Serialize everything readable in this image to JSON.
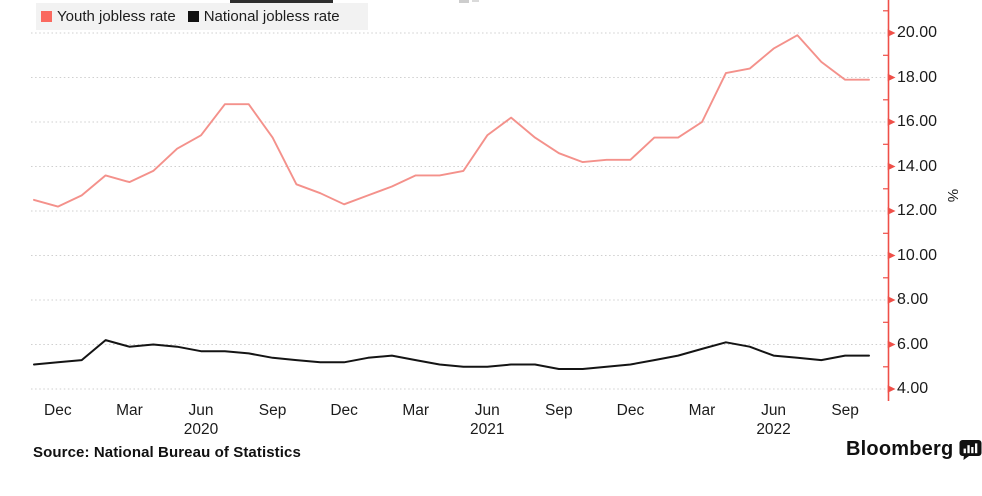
{
  "legend": {
    "items": [
      {
        "label": "Youth jobless rate",
        "color": "#fa695f"
      },
      {
        "label": "National jobless rate",
        "color": "#111111"
      }
    ]
  },
  "source": {
    "text": "Source: National Bureau of Statistics"
  },
  "branding": {
    "logo_text": "Bloomberg"
  },
  "chart_data": {
    "type": "line",
    "frequency": "monthly",
    "grid": "horizontal-dotted",
    "legend_position": "top-left",
    "ylim": [
      4,
      21.5
    ],
    "ylabel": "%",
    "months": [
      "2019-11",
      "2019-12",
      "2020-01",
      "2020-02",
      "2020-03",
      "2020-04",
      "2020-05",
      "2020-06",
      "2020-07",
      "2020-08",
      "2020-09",
      "2020-10",
      "2020-11",
      "2020-12",
      "2021-01",
      "2021-02",
      "2021-03",
      "2021-04",
      "2021-05",
      "2021-06",
      "2021-07",
      "2021-08",
      "2021-09",
      "2021-10",
      "2021-11",
      "2021-12",
      "2022-01",
      "2022-02",
      "2022-03",
      "2022-04",
      "2022-05",
      "2022-06",
      "2022-07",
      "2022-08",
      "2022-09",
      "2022-10"
    ],
    "series": [
      {
        "name": "Youth jobless rate",
        "color": "#f4918b",
        "values": [
          12.5,
          12.2,
          12.7,
          13.6,
          13.3,
          13.8,
          14.8,
          15.4,
          16.8,
          16.8,
          15.3,
          13.2,
          12.8,
          12.3,
          12.7,
          13.1,
          13.6,
          13.6,
          13.8,
          15.4,
          16.2,
          15.3,
          14.6,
          14.2,
          14.3,
          14.3,
          15.3,
          15.3,
          16.0,
          18.2,
          18.4,
          19.3,
          19.9,
          18.7,
          17.9,
          17.9
        ]
      },
      {
        "name": "National jobless rate",
        "color": "#141414",
        "values": [
          5.1,
          5.2,
          5.3,
          6.2,
          5.9,
          6.0,
          5.9,
          5.7,
          5.7,
          5.6,
          5.4,
          5.3,
          5.2,
          5.2,
          5.4,
          5.5,
          5.3,
          5.1,
          5.0,
          5.0,
          5.1,
          5.1,
          4.9,
          4.9,
          5.0,
          5.1,
          5.3,
          5.5,
          5.8,
          6.1,
          5.9,
          5.5,
          5.4,
          5.3,
          5.5,
          5.5
        ]
      }
    ],
    "y_axis": {
      "unit": "%",
      "axis_color": "#ef4f48",
      "major_ticks": [
        {
          "value": 20,
          "label": "20.00"
        },
        {
          "value": 18,
          "label": "18.00"
        },
        {
          "value": 16,
          "label": "16.00"
        },
        {
          "value": 14,
          "label": "14.00"
        },
        {
          "value": 12,
          "label": "12.00"
        },
        {
          "value": 10,
          "label": "10.00"
        },
        {
          "value": 8,
          "label": "8.00"
        },
        {
          "value": 6,
          "label": "6.00"
        },
        {
          "value": 4,
          "label": "4.00"
        }
      ],
      "minor_tick_values": [
        5,
        7,
        9,
        11,
        13,
        15,
        17,
        19,
        21
      ]
    },
    "x_axis": {
      "ticks": [
        {
          "month_index": 1,
          "label": "Dec"
        },
        {
          "month_index": 4,
          "label": "Mar"
        },
        {
          "month_index": 7,
          "label": "Jun"
        },
        {
          "month_index": 10,
          "label": "Sep"
        },
        {
          "month_index": 13,
          "label": "Dec"
        },
        {
          "month_index": 16,
          "label": "Mar"
        },
        {
          "month_index": 19,
          "label": "Jun"
        },
        {
          "month_index": 22,
          "label": "Sep"
        },
        {
          "month_index": 25,
          "label": "Dec"
        },
        {
          "month_index": 28,
          "label": "Mar"
        },
        {
          "month_index": 31,
          "label": "Jun"
        },
        {
          "month_index": 34,
          "label": "Sep"
        }
      ],
      "year_labels": [
        {
          "month_index": 7,
          "label": "2020"
        },
        {
          "month_index": 19,
          "label": "2021"
        },
        {
          "month_index": 31,
          "label": "2022"
        }
      ]
    }
  }
}
